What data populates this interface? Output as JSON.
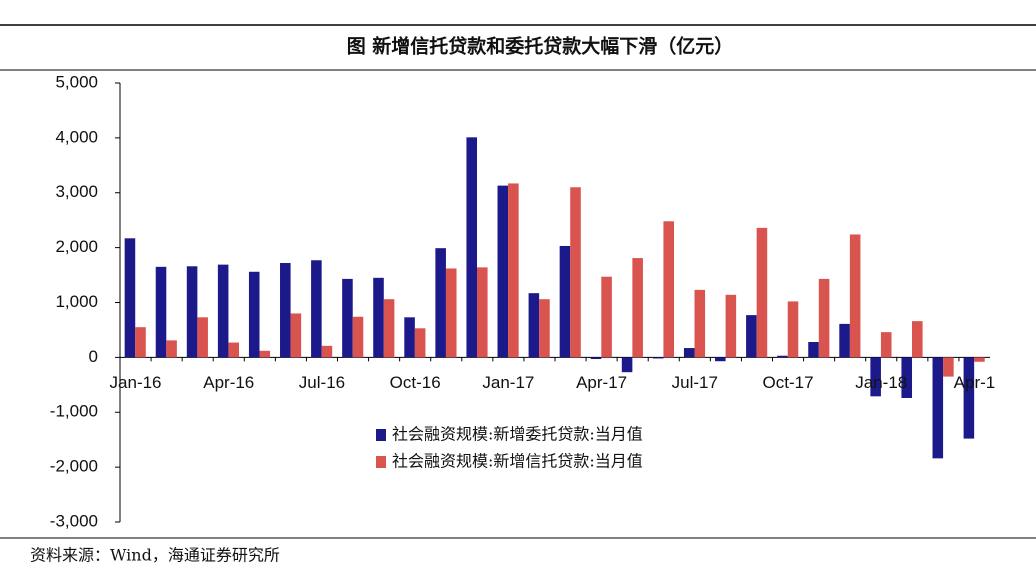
{
  "chart_data": {
    "type": "bar",
    "title": "图  新增信托贷款和委托贷款大幅下滑（亿元）",
    "source": "资料来源：Wind，海通证券研究所",
    "categories": [
      "Jan-16",
      null,
      null,
      "Apr-16",
      null,
      null,
      "Jul-16",
      null,
      null,
      "Oct-16",
      null,
      null,
      "Jan-17",
      null,
      null,
      "Apr-17",
      null,
      null,
      "Jul-17",
      null,
      null,
      "Oct-17",
      null,
      null,
      "Jan-18",
      null,
      null,
      "Apr-1"
    ],
    "series": [
      {
        "name": "社会融资规模:新增委托贷款:当月值",
        "color": "#1c1a8a",
        "values": [
          2170,
          1650,
          1660,
          1690,
          1560,
          1720,
          1770,
          1430,
          1450,
          730,
          1990,
          4010,
          3130,
          1170,
          2030,
          -30,
          -270,
          -20,
          170,
          -70,
          770,
          30,
          280,
          610,
          -710,
          -740,
          -1840,
          -1480
        ]
      },
      {
        "name": "社会融资规模:新增信托贷款:当月值",
        "color": "#d9534f",
        "values": [
          550,
          310,
          730,
          270,
          120,
          800,
          210,
          740,
          1060,
          530,
          1620,
          1640,
          3170,
          1060,
          3100,
          1470,
          1810,
          2480,
          1230,
          1140,
          2360,
          1020,
          1430,
          2240,
          460,
          660,
          -350,
          -80
        ]
      }
    ],
    "ylim": [
      -3000,
      5000
    ],
    "yticks": [
      {
        "value": -3000,
        "label": "-3,000"
      },
      {
        "value": -2000,
        "label": "-2,000"
      },
      {
        "value": -1000,
        "label": "-1,000"
      },
      0,
      {
        "value": 1000,
        "label": "1,000"
      },
      {
        "value": 2000,
        "label": "2,000"
      },
      {
        "value": 3000,
        "label": "3,000"
      },
      {
        "value": 4000,
        "label": "4,000"
      },
      {
        "value": 5000,
        "label": "5,000"
      }
    ],
    "grid": false
  }
}
